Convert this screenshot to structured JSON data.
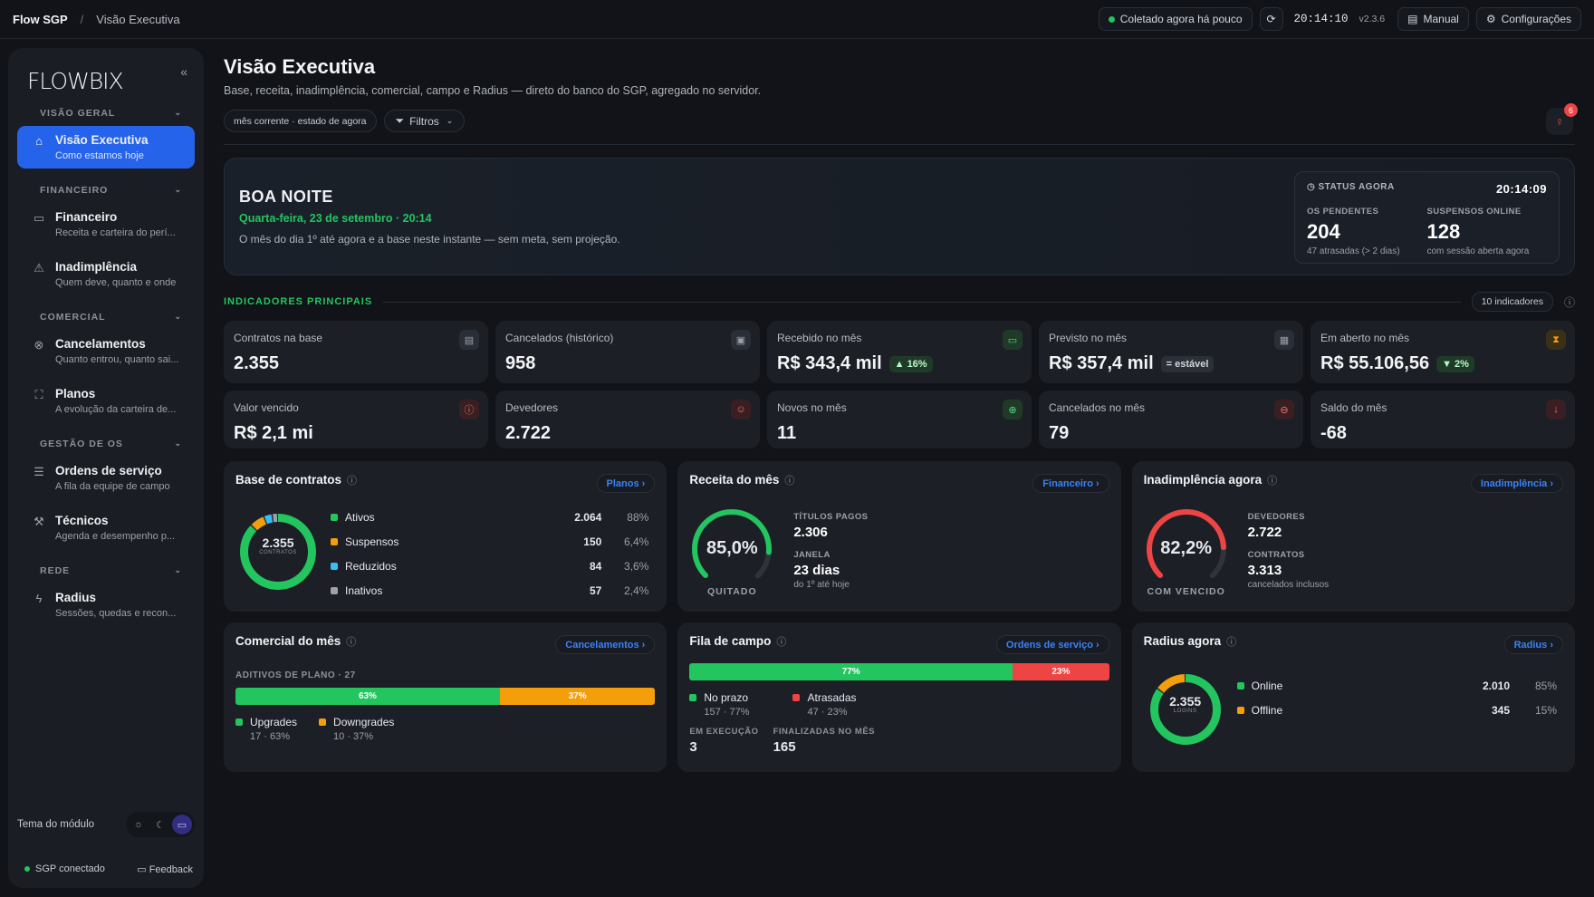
{
  "topbar": {
    "brand": "Flow SGP",
    "sep": "/",
    "crumb": "Visão Executiva",
    "collected": "Coletado agora há pouco",
    "time": "20:14:10",
    "version": "v2.3.6",
    "manual": "Manual",
    "settings": "Configurações"
  },
  "sidebar": {
    "logo": "FLOWBIX",
    "sections": [
      {
        "title": "VISÃO GERAL",
        "items": [
          {
            "label": "Visão Executiva",
            "sub": "Como estamos hoje",
            "icon": "home-icon"
          }
        ]
      },
      {
        "title": "FINANCEIRO",
        "items": [
          {
            "label": "Financeiro",
            "sub": "Receita e carteira do perí...",
            "icon": "card-icon"
          },
          {
            "label": "Inadimplência",
            "sub": "Quem deve, quanto e onde",
            "icon": "warning-icon"
          }
        ]
      },
      {
        "title": "COMERCIAL",
        "items": [
          {
            "label": "Cancelamentos",
            "sub": "Quanto entrou, quanto sai...",
            "icon": "cancel-icon"
          },
          {
            "label": "Planos",
            "sub": "A evolução da carteira de...",
            "icon": "plans-icon"
          }
        ]
      },
      {
        "title": "GESTÃO DE OS",
        "items": [
          {
            "label": "Ordens de serviço",
            "sub": "A fila da equipe de campo",
            "icon": "list-icon"
          },
          {
            "label": "Técnicos",
            "sub": "Agenda e desempenho p...",
            "icon": "wrench-icon"
          }
        ]
      },
      {
        "title": "REDE",
        "items": [
          {
            "label": "Radius",
            "sub": "Sessões, quedas e recon...",
            "icon": "bolt-icon"
          }
        ]
      }
    ],
    "theme_label": "Tema do módulo",
    "sgp": "SGP conectado",
    "feedback": "Feedback"
  },
  "page": {
    "title": "Visão Executiva",
    "subtitle": "Base, receita, inadimplência, comercial, campo e Radius — direto do banco do SGP, agregado no servidor.",
    "chip_period": "mês corrente · estado de agora",
    "chip_filters": "Filtros",
    "bell_count": "6"
  },
  "hero": {
    "greeting": "BOA NOITE",
    "date": "Quarta-feira, 23 de setembro · 20:14",
    "message": "O mês do dia 1º até agora e a base neste instante — sem meta, sem projeção.",
    "status": {
      "title": "STATUS AGORA",
      "time": "20:14:09",
      "os_label": "OS PENDENTES",
      "os_value": "204",
      "os_sub": "47 atrasadas (> 2 dias)",
      "susp_label": "SUSPENSOS ONLINE",
      "susp_value": "128",
      "susp_sub": "com sessão aberta agora"
    }
  },
  "indicators": {
    "title": "INDICADORES PRINCIPAIS",
    "count": "10 indicadores",
    "kpis": [
      {
        "label": "Contratos na base",
        "value": "2.355",
        "icon": "doc-icon",
        "color": "#9aa0aa",
        "bg": "#2a2e36"
      },
      {
        "label": "Cancelados (histórico)",
        "value": "958",
        "icon": "archive-icon",
        "color": "#9aa0aa",
        "bg": "#2a2e36"
      },
      {
        "label": "Recebido no mês",
        "value": "R$ 343,4 mil",
        "tag": "▲ 16%",
        "tagtype": "up",
        "icon": "wallet-icon",
        "color": "#4ade80",
        "bg": "#1f3b27"
      },
      {
        "label": "Previsto no mês",
        "value": "R$ 357,4 mil",
        "tag": "= estável",
        "tagtype": "eq",
        "icon": "calendar-icon",
        "color": "#9aa0aa",
        "bg": "#2a2e36"
      },
      {
        "label": "Em aberto no mês",
        "value": "R$ 55.106,56",
        "tag": "▼ 2%",
        "tagtype": "up",
        "icon": "hourglass-icon",
        "color": "#f59e0b",
        "bg": "#3a2f17"
      },
      {
        "label": "Valor vencido",
        "value": "R$ 2,1 mi",
        "icon": "alert-icon",
        "color": "#f87171",
        "bg": "#3a1f22"
      },
      {
        "label": "Devedores",
        "value": "2.722",
        "icon": "users-icon",
        "color": "#f87171",
        "bg": "#3a1f22"
      },
      {
        "label": "Novos no mês",
        "value": "11",
        "icon": "plus-icon",
        "color": "#4ade80",
        "bg": "#1f3b27"
      },
      {
        "label": "Cancelados no mês",
        "value": "79",
        "icon": "minus-icon",
        "color": "#f87171",
        "bg": "#3a1f22"
      },
      {
        "label": "Saldo do mês",
        "value": "-68",
        "icon": "arrow-down-icon",
        "color": "#f87171",
        "bg": "#3a1f22"
      }
    ]
  },
  "cards": {
    "base": {
      "title": "Base de contratos",
      "link": "Planos",
      "total": "2.355",
      "total_label": "CONTRATOS",
      "rows": [
        {
          "name": "Ativos",
          "value": "2.064",
          "pct": "88%",
          "color": "#22c55e",
          "frac": 0.876
        },
        {
          "name": "Suspensos",
          "value": "150",
          "pct": "6,4%",
          "color": "#f59e0b",
          "frac": 0.064
        },
        {
          "name": "Reduzidos",
          "value": "84",
          "pct": "3,6%",
          "color": "#38bdf8",
          "frac": 0.036
        },
        {
          "name": "Inativos",
          "value": "57",
          "pct": "2,4%",
          "color": "#9ca3af",
          "frac": 0.024
        }
      ]
    },
    "receita": {
      "title": "Receita do mês",
      "link": "Financeiro",
      "gauge": "85,0%",
      "gauge_frac": 0.85,
      "gauge_label": "QUITADO",
      "k1_label": "TÍTULOS PAGOS",
      "k1_value": "2.306",
      "k2_label": "JANELA",
      "k2_value": "23 dias",
      "k2_sub": "do 1º até hoje"
    },
    "inad": {
      "title": "Inadimplência agora",
      "link": "Inadimplência",
      "gauge": "82,2%",
      "gauge_frac": 0.822,
      "gauge_label": "COM VENCIDO",
      "k1_label": "DEVEDORES",
      "k1_value": "2.722",
      "k2_label": "CONTRATOS",
      "k2_value": "3.313",
      "k2_sub": "cancelados inclusos"
    },
    "comercial": {
      "title": "Comercial do mês",
      "link": "Cancelamentos",
      "caption": "ADITIVOS DE PLANO · 27",
      "bar": [
        {
          "pct": "63%",
          "frac": 0.63,
          "color": "#22c55e"
        },
        {
          "pct": "37%",
          "frac": 0.37,
          "color": "#f59e0b"
        }
      ],
      "legend": [
        {
          "name": "Upgrades",
          "sub": "17 · 63%",
          "color": "#22c55e"
        },
        {
          "name": "Downgrades",
          "sub": "10 · 37%",
          "color": "#f59e0b"
        }
      ]
    },
    "campo": {
      "title": "Fila de campo",
      "link": "Ordens de serviço",
      "bar": [
        {
          "pct": "77%",
          "frac": 0.77,
          "color": "#22c55e"
        },
        {
          "pct": "23%",
          "frac": 0.23,
          "color": "#ef4444"
        }
      ],
      "legend": [
        {
          "name": "No prazo",
          "sub": "157 · 77%",
          "color": "#22c55e"
        },
        {
          "name": "Atrasadas",
          "sub": "47 · 23%",
          "color": "#ef4444"
        }
      ],
      "k1_label": "EM EXECUÇÃO",
      "k1_value": "3",
      "k2_label": "FINALIZADAS NO MÊS",
      "k2_value": "165"
    },
    "radius": {
      "title": "Radius agora",
      "link": "Radius",
      "total": "2.355",
      "total_label": "LOGINS",
      "rows": [
        {
          "name": "Online",
          "value": "2.010",
          "pct": "85%",
          "color": "#22c55e",
          "frac": 0.854
        },
        {
          "name": "Offline",
          "value": "345",
          "pct": "15%",
          "color": "#f59e0b",
          "frac": 0.146
        }
      ]
    }
  }
}
